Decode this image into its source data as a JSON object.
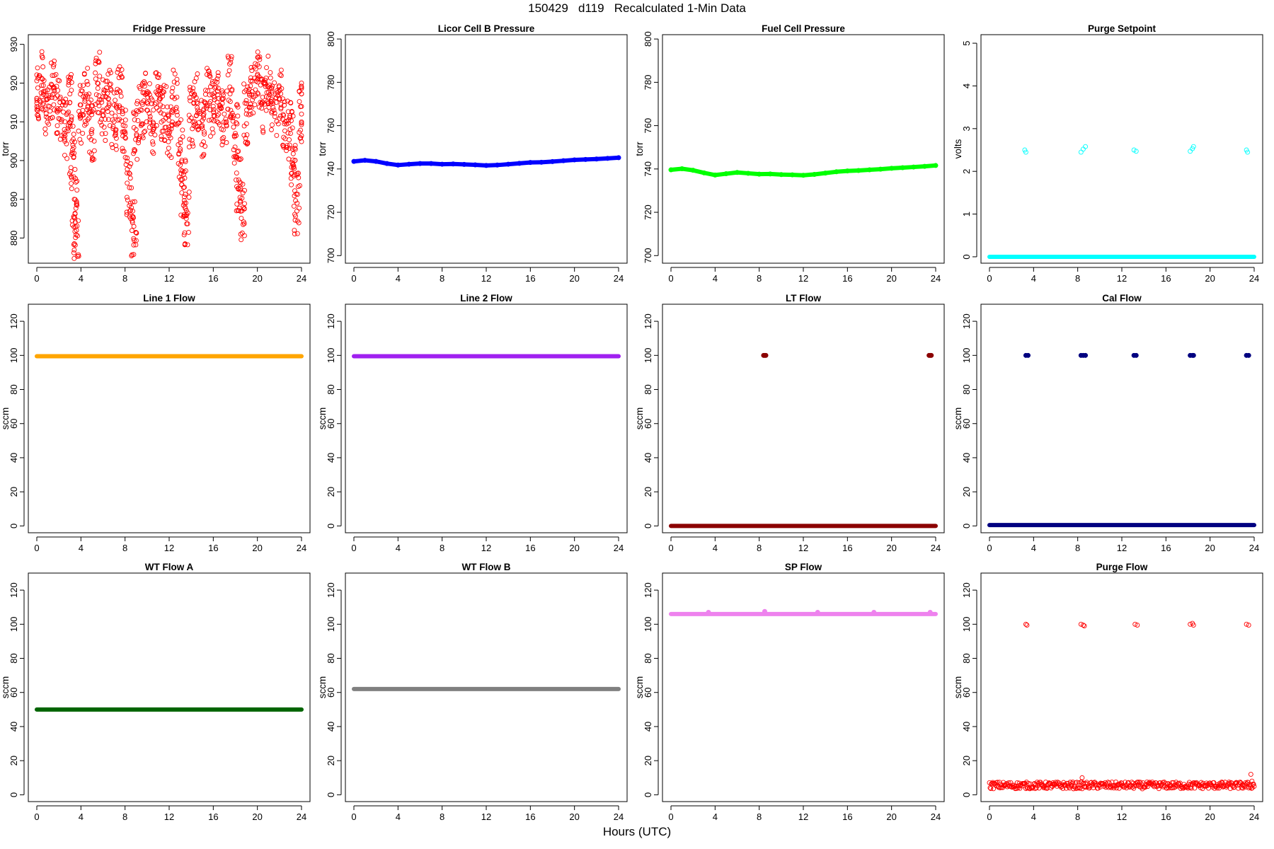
{
  "figure": {
    "title": "150429   d119   Recalculated 1-Min Data",
    "xlabel": "Hours (UTC)"
  },
  "chart_data": [
    {
      "type": "scatter",
      "title": "Fridge Pressure",
      "ylabel": "torr",
      "xlim": [
        0,
        24
      ],
      "ylim": [
        873.5,
        932.5
      ],
      "xticks": [
        0,
        4,
        8,
        12,
        16,
        20,
        24
      ],
      "yticks": [
        880,
        890,
        900,
        910,
        920,
        930
      ],
      "color": "#ff0000",
      "marker": "open-circle",
      "series": [
        {
          "x": [
            0.0,
            0.5,
            1.0,
            1.5,
            2.0,
            2.5,
            3.0,
            3.2,
            3.4,
            3.6,
            4.0,
            4.5,
            5.0,
            5.5,
            6.0,
            6.5,
            7.0,
            7.5,
            8.0,
            8.4,
            8.8,
            9.0,
            9.5,
            10.0,
            10.5,
            11.0,
            11.5,
            12.0,
            12.5,
            13.0,
            13.3,
            13.6,
            14.0,
            14.5,
            15.0,
            15.5,
            16.0,
            16.5,
            17.0,
            17.5,
            18.0,
            18.3,
            18.6,
            19.0,
            19.5,
            20.0,
            20.5,
            21.0,
            21.5,
            22.0,
            22.5,
            23.0,
            23.3,
            23.6,
            24.0
          ],
          "y": [
            916,
            921,
            911,
            919,
            913,
            908,
            915,
            902,
            890,
            882,
            912,
            917,
            908,
            920,
            913,
            916,
            910,
            918,
            906,
            893,
            883,
            908,
            913,
            915,
            909,
            917,
            912,
            908,
            916,
            903,
            893,
            886,
            911,
            915,
            909,
            918,
            914,
            916,
            912,
            919,
            907,
            895,
            887,
            912,
            917,
            921,
            915,
            919,
            913,
            916,
            910,
            907,
            896,
            889,
            912
          ]
        }
      ]
    },
    {
      "type": "scatter",
      "title": "Licor Cell B Pressure",
      "ylabel": "torr",
      "xlim": [
        0,
        24
      ],
      "ylim": [
        696.5,
        802
      ],
      "xticks": [
        0,
        4,
        8,
        12,
        16,
        20,
        24
      ],
      "yticks": [
        700,
        720,
        740,
        760,
        780,
        800
      ],
      "color": "#0000ff",
      "marker": "filled-circle",
      "series": [
        {
          "x": [
            0,
            1,
            2,
            3,
            4,
            5,
            6,
            7,
            8,
            9,
            10,
            11,
            12,
            13,
            14,
            15,
            16,
            17,
            18,
            19,
            20,
            21,
            22,
            23,
            24
          ],
          "y": [
            743.5,
            744,
            743.5,
            742.5,
            741.8,
            742.2,
            742.5,
            742.5,
            742.2,
            742.3,
            742.1,
            741.9,
            741.6,
            741.8,
            742.2,
            742.6,
            743,
            743.1,
            743.4,
            743.8,
            744.2,
            744.4,
            744.6,
            744.9,
            745.2
          ]
        }
      ]
    },
    {
      "type": "scatter",
      "title": "Fuel Cell Pressure",
      "ylabel": "torr",
      "xlim": [
        0,
        24
      ],
      "ylim": [
        696.5,
        802
      ],
      "xticks": [
        0,
        4,
        8,
        12,
        16,
        20,
        24
      ],
      "yticks": [
        700,
        720,
        740,
        760,
        780,
        800
      ],
      "color": "#00ff00",
      "marker": "filled-circle",
      "series": [
        {
          "x": [
            0,
            1,
            2,
            3,
            4,
            5,
            6,
            7,
            8,
            9,
            10,
            11,
            12,
            13,
            14,
            15,
            16,
            17,
            18,
            19,
            20,
            21,
            22,
            23,
            24
          ],
          "y": [
            739.6,
            740.1,
            739.4,
            738.2,
            737.2,
            737.8,
            738.4,
            738,
            737.6,
            737.7,
            737.4,
            737.3,
            737.1,
            737.5,
            738.1,
            738.7,
            739.1,
            739.3,
            739.6,
            739.9,
            740.3,
            740.6,
            740.9,
            741.2,
            741.6
          ]
        }
      ]
    },
    {
      "type": "scatter",
      "title": "Purge Setpoint",
      "ylabel": "volts",
      "xlim": [
        0,
        24
      ],
      "ylim": [
        -0.15,
        5.2
      ],
      "xticks": [
        0,
        4,
        8,
        12,
        16,
        20,
        24
      ],
      "yticks": [
        0,
        1,
        2,
        3,
        4,
        5
      ],
      "color": "#00ffff",
      "marker": "open-circle",
      "baseline": {
        "x": [
          0,
          24
        ],
        "y": 0
      },
      "series": [
        {
          "x": [
            3.2,
            3.3,
            8.3,
            8.5,
            8.7,
            13.1,
            13.3,
            18.2,
            18.4,
            18.5,
            23.3,
            23.4
          ],
          "y": [
            2.5,
            2.45,
            2.45,
            2.52,
            2.58,
            2.5,
            2.47,
            2.47,
            2.53,
            2.58,
            2.5,
            2.45
          ]
        }
      ]
    },
    {
      "type": "scatter",
      "title": "Line 1 Flow",
      "ylabel": "sccm",
      "xlim": [
        0,
        24
      ],
      "ylim": [
        -4,
        130
      ],
      "xticks": [
        0,
        4,
        8,
        12,
        16,
        20,
        24
      ],
      "yticks": [
        0,
        20,
        40,
        60,
        80,
        100,
        120
      ],
      "color": "#ffa500",
      "marker": "filled-circle",
      "baseline": {
        "x": [
          0,
          24
        ],
        "y": 99.5
      }
    },
    {
      "type": "scatter",
      "title": "Line 2 Flow",
      "ylabel": "sccm",
      "xlim": [
        0,
        24
      ],
      "ylim": [
        -4,
        130
      ],
      "xticks": [
        0,
        4,
        8,
        12,
        16,
        20,
        24
      ],
      "yticks": [
        0,
        20,
        40,
        60,
        80,
        100,
        120
      ],
      "color": "#a020f0",
      "marker": "filled-circle",
      "baseline": {
        "x": [
          0,
          24
        ],
        "y": 99.5
      }
    },
    {
      "type": "scatter",
      "title": "LT Flow",
      "ylabel": "sccm",
      "xlim": [
        0,
        24
      ],
      "ylim": [
        -4,
        130
      ],
      "xticks": [
        0,
        4,
        8,
        12,
        16,
        20,
        24
      ],
      "yticks": [
        0,
        20,
        40,
        60,
        80,
        100,
        120
      ],
      "color": "#8b0000",
      "marker": "filled-circle",
      "baseline": {
        "x": [
          0,
          24
        ],
        "y": 0
      },
      "series": [
        {
          "x": [
            8.4,
            8.5,
            8.6,
            23.4,
            23.5,
            23.6
          ],
          "y": [
            100,
            100,
            100,
            100,
            100,
            100
          ]
        }
      ]
    },
    {
      "type": "scatter",
      "title": "Cal Flow",
      "ylabel": "sccm",
      "xlim": [
        0,
        24
      ],
      "ylim": [
        -4,
        130
      ],
      "xticks": [
        0,
        4,
        8,
        12,
        16,
        20,
        24
      ],
      "yticks": [
        0,
        20,
        40,
        60,
        80,
        100,
        120
      ],
      "color": "#000080",
      "marker": "filled-circle",
      "baseline": {
        "x": [
          0,
          24
        ],
        "y": 0.5
      },
      "series": [
        {
          "x": [
            3.3,
            3.5,
            8.3,
            8.5,
            8.7,
            13.1,
            13.3,
            18.2,
            18.4,
            18.5,
            23.3,
            23.5
          ],
          "y": [
            100,
            100,
            100,
            100,
            100,
            100,
            100,
            100,
            100,
            100,
            100,
            100
          ]
        }
      ]
    },
    {
      "type": "scatter",
      "title": "WT Flow A",
      "ylabel": "sccm",
      "xlim": [
        0,
        24
      ],
      "ylim": [
        -4,
        130
      ],
      "xticks": [
        0,
        4,
        8,
        12,
        16,
        20,
        24
      ],
      "yticks": [
        0,
        20,
        40,
        60,
        80,
        100,
        120
      ],
      "color": "#006400",
      "marker": "filled-circle",
      "baseline": {
        "x": [
          0,
          24
        ],
        "y": 50
      }
    },
    {
      "type": "scatter",
      "title": "WT Flow B",
      "ylabel": "sccm",
      "xlim": [
        0,
        24
      ],
      "ylim": [
        -4,
        130
      ],
      "xticks": [
        0,
        4,
        8,
        12,
        16,
        20,
        24
      ],
      "yticks": [
        0,
        20,
        40,
        60,
        80,
        100,
        120
      ],
      "color": "#808080",
      "marker": "filled-circle",
      "baseline": {
        "x": [
          0,
          24
        ],
        "y": 62
      }
    },
    {
      "type": "scatter",
      "title": "SP Flow",
      "ylabel": "sccm",
      "xlim": [
        0,
        24
      ],
      "ylim": [
        -4,
        130
      ],
      "xticks": [
        0,
        4,
        8,
        12,
        16,
        20,
        24
      ],
      "yticks": [
        0,
        20,
        40,
        60,
        80,
        100,
        120
      ],
      "color": "#ee82ee",
      "marker": "filled-circle",
      "baseline": {
        "x": [
          0,
          24
        ],
        "y": 106
      },
      "series": [
        {
          "x": [
            3.4,
            8.5,
            13.3,
            18.4,
            23.5
          ],
          "y": [
            107,
            107.5,
            107,
            107,
            107
          ]
        }
      ]
    },
    {
      "type": "scatter",
      "title": "Purge Flow",
      "ylabel": "sccm",
      "xlim": [
        0,
        24
      ],
      "ylim": [
        -4,
        130
      ],
      "xticks": [
        0,
        4,
        8,
        12,
        16,
        20,
        24
      ],
      "yticks": [
        0,
        20,
        40,
        60,
        80,
        100,
        120
      ],
      "color": "#ff0000",
      "marker": "open-circle",
      "baseline": {
        "x": [
          0,
          24
        ],
        "y": 5.5
      },
      "series": [
        {
          "x": [
            3.3,
            3.4,
            8.3,
            8.5,
            8.6,
            13.2,
            13.4,
            18.2,
            18.4,
            18.5,
            23.3,
            23.5,
            8.4,
            23.7,
            23.8
          ],
          "y": [
            100,
            99.5,
            100,
            99.5,
            99,
            100,
            99.5,
            100,
            100.5,
            99.5,
            100,
            99.5,
            10,
            12,
            8
          ]
        }
      ]
    }
  ]
}
